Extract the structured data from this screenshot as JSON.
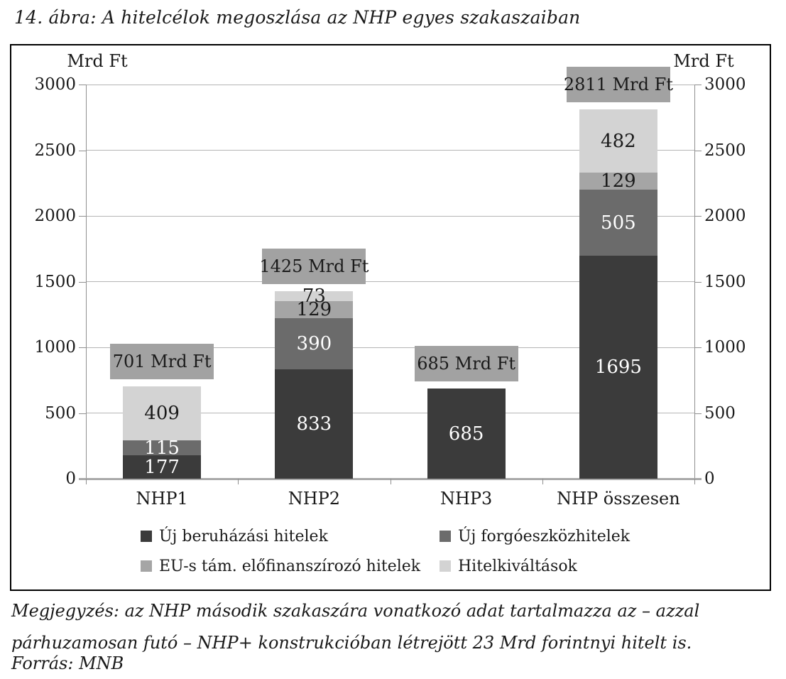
{
  "title": "14. ábra: A hitelcélok megoszlása az NHP egyes szakaszaiban",
  "note": "Megjegyzés: az NHP második szakaszára vonatkozó adat tartalmazza az – azzal párhuzamosan futó – NHP+ konstrukcióban létrejött 23 Mrd forintnyi hitelt is.",
  "source": "Forrás: MNB",
  "chart_data": {
    "type": "bar",
    "stacked": true,
    "title": "A hitelcélok megoszlása az NHP egyes szakaszaiban",
    "unit_label": "Mrd Ft",
    "categories": [
      "NHP1",
      "NHP2",
      "NHP3",
      "NHP összesen"
    ],
    "series": [
      {
        "name": "Új beruházási hitelek",
        "color": "#3b3b3b",
        "label_color": "#ffffff",
        "values": [
          177,
          833,
          685,
          1695
        ]
      },
      {
        "name": "Új forgóeszközhitelek",
        "color": "#6b6b6b",
        "label_color": "#ffffff",
        "values": [
          115,
          390,
          0,
          505
        ]
      },
      {
        "name": "EU-s tám. előfinanszírozó hitelek",
        "color": "#a5a5a5",
        "label_color": "#1a1a1a",
        "values": [
          0,
          129,
          0,
          129
        ]
      },
      {
        "name": "Hitelkiváltások",
        "color": "#d3d3d3",
        "label_color": "#1a1a1a",
        "values": [
          409,
          73,
          0,
          482
        ]
      }
    ],
    "totals": [
      701,
      1425,
      685,
      2811
    ],
    "total_suffix": "Mrd Ft",
    "total_box_color": "#a2a2a2",
    "y_axis": {
      "min": 0,
      "max": 3000,
      "step": 500,
      "ticks": [
        3000,
        2500,
        2000,
        1500,
        1000,
        500,
        0
      ],
      "left_axis": true,
      "right_axis": true
    },
    "grid": true,
    "legend_position": "bottom",
    "legend_rows": [
      [
        0,
        1
      ],
      [
        2,
        3
      ]
    ]
  }
}
